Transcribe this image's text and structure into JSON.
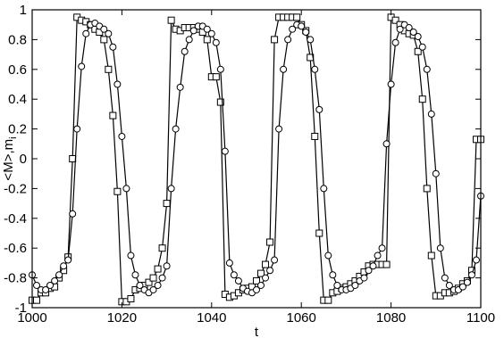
{
  "chart_data": {
    "type": "line",
    "xlabel": "t",
    "ylabel": "<M>,m",
    "ylabel_subscript": "i",
    "xlim": [
      1000,
      1100
    ],
    "ylim": [
      -1,
      1
    ],
    "x_ticks": [
      1000,
      1020,
      1040,
      1060,
      1080,
      1100
    ],
    "x_tick_labels": [
      "1000",
      "1020",
      "1040",
      "1060",
      "1080",
      "1100"
    ],
    "y_ticks": [
      -1,
      -0.8,
      -0.6,
      -0.4,
      -0.2,
      0,
      0.2,
      0.4,
      0.6,
      0.8,
      1
    ],
    "y_tick_labels": [
      "-1",
      "-0.8",
      "-0.6",
      "-0.4",
      "-0.2",
      "0",
      "0.2",
      "0.4",
      "0.6",
      "0.8",
      "1"
    ],
    "grid": false,
    "series": [
      {
        "marker": "square",
        "x": [
          1000,
          1001,
          1002,
          1003,
          1004,
          1005,
          1006,
          1007,
          1008,
          1009,
          1010,
          1011,
          1012,
          1013,
          1014,
          1015,
          1016,
          1017,
          1018,
          1019,
          1020,
          1021,
          1022,
          1023,
          1024,
          1025,
          1026,
          1027,
          1028,
          1029,
          1030,
          1031,
          1032,
          1033,
          1034,
          1035,
          1036,
          1037,
          1038,
          1039,
          1040,
          1041,
          1042,
          1043,
          1044,
          1045,
          1046,
          1047,
          1048,
          1049,
          1050,
          1051,
          1052,
          1053,
          1054,
          1055,
          1056,
          1057,
          1058,
          1059,
          1060,
          1061,
          1062,
          1063,
          1064,
          1065,
          1066,
          1067,
          1068,
          1069,
          1070,
          1071,
          1072,
          1073,
          1074,
          1075,
          1076,
          1077,
          1078,
          1079,
          1080,
          1081,
          1082,
          1083,
          1084,
          1085,
          1086,
          1087,
          1088,
          1089,
          1090,
          1091,
          1092,
          1093,
          1094,
          1095,
          1096,
          1097,
          1098,
          1099,
          1100
        ],
        "y": [
          -0.95,
          -0.95,
          -0.9,
          -0.9,
          -0.87,
          -0.86,
          -0.8,
          -0.75,
          -0.66,
          0.0,
          0.95,
          0.93,
          0.92,
          0.9,
          0.87,
          0.85,
          0.8,
          0.6,
          0.29,
          -0.22,
          -0.96,
          -0.96,
          -0.94,
          -0.88,
          -0.87,
          -0.85,
          -0.83,
          -0.8,
          -0.74,
          -0.6,
          -0.3,
          0.93,
          0.87,
          0.86,
          0.88,
          0.88,
          0.88,
          0.87,
          0.85,
          0.8,
          0.55,
          0.55,
          0.38,
          -0.91,
          -0.93,
          -0.92,
          -0.9,
          -0.88,
          -0.87,
          -0.86,
          -0.82,
          -0.77,
          -0.71,
          -0.56,
          0.8,
          0.95,
          0.95,
          0.95,
          0.95,
          0.95,
          0.9,
          0.86,
          0.68,
          0.15,
          -0.5,
          -0.95,
          -0.95,
          -0.9,
          -0.89,
          -0.87,
          -0.86,
          -0.84,
          -0.82,
          -0.79,
          -0.76,
          -0.72,
          -0.71,
          -0.71,
          -0.71,
          -0.71,
          0.95,
          0.93,
          0.9,
          0.86,
          0.84,
          0.83,
          0.72,
          0.4,
          -0.2,
          -0.65,
          -0.92,
          -0.92,
          -0.9,
          -0.9,
          -0.89,
          -0.87,
          -0.84,
          -0.82,
          -0.75,
          0.13,
          0.13
        ]
      },
      {
        "marker": "circle",
        "x": [
          1000,
          1001,
          1002,
          1003,
          1004,
          1005,
          1006,
          1007,
          1008,
          1009,
          1010,
          1011,
          1012,
          1013,
          1014,
          1015,
          1016,
          1017,
          1018,
          1019,
          1020,
          1021,
          1022,
          1023,
          1024,
          1025,
          1026,
          1027,
          1028,
          1029,
          1030,
          1031,
          1032,
          1033,
          1034,
          1035,
          1036,
          1037,
          1038,
          1039,
          1040,
          1041,
          1042,
          1043,
          1044,
          1045,
          1046,
          1047,
          1048,
          1049,
          1050,
          1051,
          1052,
          1053,
          1054,
          1055,
          1056,
          1057,
          1058,
          1059,
          1060,
          1061,
          1062,
          1063,
          1064,
          1065,
          1066,
          1067,
          1068,
          1069,
          1070,
          1071,
          1072,
          1073,
          1074,
          1075,
          1076,
          1077,
          1078,
          1079,
          1080,
          1081,
          1082,
          1083,
          1084,
          1085,
          1086,
          1087,
          1088,
          1089,
          1090,
          1091,
          1092,
          1093,
          1094,
          1095,
          1096,
          1097,
          1098,
          1099,
          1100
        ],
        "y": [
          -0.78,
          -0.85,
          -0.88,
          -0.88,
          -0.85,
          -0.82,
          -0.78,
          -0.72,
          -0.68,
          -0.37,
          0.2,
          0.62,
          0.84,
          0.9,
          0.91,
          0.89,
          0.87,
          0.84,
          0.75,
          0.5,
          0.15,
          -0.2,
          -0.65,
          -0.78,
          -0.85,
          -0.88,
          -0.9,
          -0.88,
          -0.85,
          -0.8,
          -0.72,
          -0.2,
          0.2,
          0.48,
          0.72,
          0.8,
          0.86,
          0.89,
          0.89,
          0.87,
          0.84,
          0.78,
          0.6,
          0.05,
          -0.7,
          -0.78,
          -0.82,
          -0.87,
          -0.89,
          -0.9,
          -0.88,
          -0.85,
          -0.8,
          -0.75,
          -0.68,
          0.2,
          0.6,
          0.8,
          0.87,
          0.9,
          0.89,
          0.85,
          0.8,
          0.6,
          0.33,
          -0.2,
          -0.65,
          -0.78,
          -0.85,
          -0.88,
          -0.88,
          -0.87,
          -0.85,
          -0.82,
          -0.8,
          -0.75,
          -0.72,
          -0.65,
          -0.6,
          0.1,
          0.5,
          0.78,
          0.87,
          0.9,
          0.88,
          0.85,
          0.82,
          0.75,
          0.6,
          0.3,
          -0.1,
          -0.6,
          -0.8,
          -0.85,
          -0.88,
          -0.88,
          -0.86,
          -0.83,
          -0.78,
          -0.68,
          -0.25
        ]
      }
    ]
  }
}
